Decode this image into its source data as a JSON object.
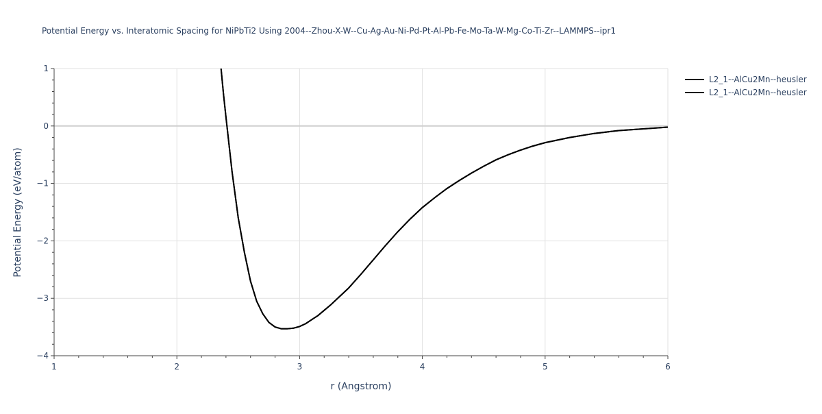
{
  "chart_data": {
    "type": "line",
    "title": "Potential Energy vs. Interatomic Spacing for NiPbTi2 Using 2004--Zhou-X-W--Cu-Ag-Au-Ni-Pd-Pt-Al-Pb-Fe-Mo-Ta-W-Mg-Co-Ti-Zr--LAMMPS--ipr1",
    "xlabel": "r (Angstrom)",
    "ylabel": "Potential Energy (eV/atom)",
    "xlim": [
      1,
      6
    ],
    "ylim": [
      -4,
      1
    ],
    "xticks": [
      1,
      2,
      3,
      4,
      5,
      6
    ],
    "xtick_labels": [
      "1",
      "2",
      "3",
      "4",
      "5",
      "6"
    ],
    "yticks": [
      1,
      0,
      -1,
      -2,
      -3,
      -4
    ],
    "ytick_labels": [
      "1",
      "0",
      "−1",
      "−2",
      "−3",
      "−4"
    ],
    "grid": true,
    "legend_position": "top-right",
    "line_color": "#000000",
    "series": [
      {
        "name": "L2_1--AlCu2Mn--heusler",
        "x": [
          2.36,
          2.38,
          2.4,
          2.45,
          2.5,
          2.55,
          2.6,
          2.65,
          2.7,
          2.75,
          2.8,
          2.85,
          2.9,
          2.95,
          3.0,
          3.05,
          3.1,
          3.15,
          3.2,
          3.25,
          3.3,
          3.4,
          3.5,
          3.6,
          3.7,
          3.8,
          3.9,
          4.0,
          4.1,
          4.2,
          4.3,
          4.4,
          4.5,
          4.6,
          4.7,
          4.8,
          4.9,
          5.0,
          5.2,
          5.4,
          5.6,
          5.8,
          6.0
        ],
        "y": [
          1.0,
          0.55,
          0.15,
          -0.8,
          -1.6,
          -2.2,
          -2.7,
          -3.05,
          -3.27,
          -3.42,
          -3.5,
          -3.53,
          -3.53,
          -3.52,
          -3.49,
          -3.44,
          -3.37,
          -3.3,
          -3.21,
          -3.12,
          -3.02,
          -2.82,
          -2.58,
          -2.33,
          -2.08,
          -1.84,
          -1.62,
          -1.42,
          -1.25,
          -1.09,
          -0.95,
          -0.82,
          -0.7,
          -0.59,
          -0.5,
          -0.42,
          -0.35,
          -0.29,
          -0.2,
          -0.13,
          -0.08,
          -0.05,
          -0.02
        ]
      },
      {
        "name": "L2_1--AlCu2Mn--heusler",
        "x": [
          2.36,
          2.38,
          2.4,
          2.45,
          2.5,
          2.55,
          2.6,
          2.65,
          2.7,
          2.75,
          2.8,
          2.85,
          2.9,
          2.95,
          3.0,
          3.05,
          3.1,
          3.15,
          3.2,
          3.25,
          3.3,
          3.4,
          3.5,
          3.6,
          3.7,
          3.8,
          3.9,
          4.0,
          4.1,
          4.2,
          4.3,
          4.4,
          4.5,
          4.6,
          4.7,
          4.8,
          4.9,
          5.0,
          5.2,
          5.4,
          5.6,
          5.8,
          6.0
        ],
        "y": [
          1.0,
          0.55,
          0.15,
          -0.8,
          -1.6,
          -2.2,
          -2.7,
          -3.05,
          -3.27,
          -3.42,
          -3.5,
          -3.53,
          -3.53,
          -3.52,
          -3.49,
          -3.44,
          -3.37,
          -3.3,
          -3.21,
          -3.12,
          -3.02,
          -2.82,
          -2.58,
          -2.33,
          -2.08,
          -1.84,
          -1.62,
          -1.42,
          -1.25,
          -1.09,
          -0.95,
          -0.82,
          -0.7,
          -0.59,
          -0.5,
          -0.42,
          -0.35,
          -0.29,
          -0.2,
          -0.13,
          -0.08,
          -0.05,
          -0.02
        ]
      }
    ]
  }
}
